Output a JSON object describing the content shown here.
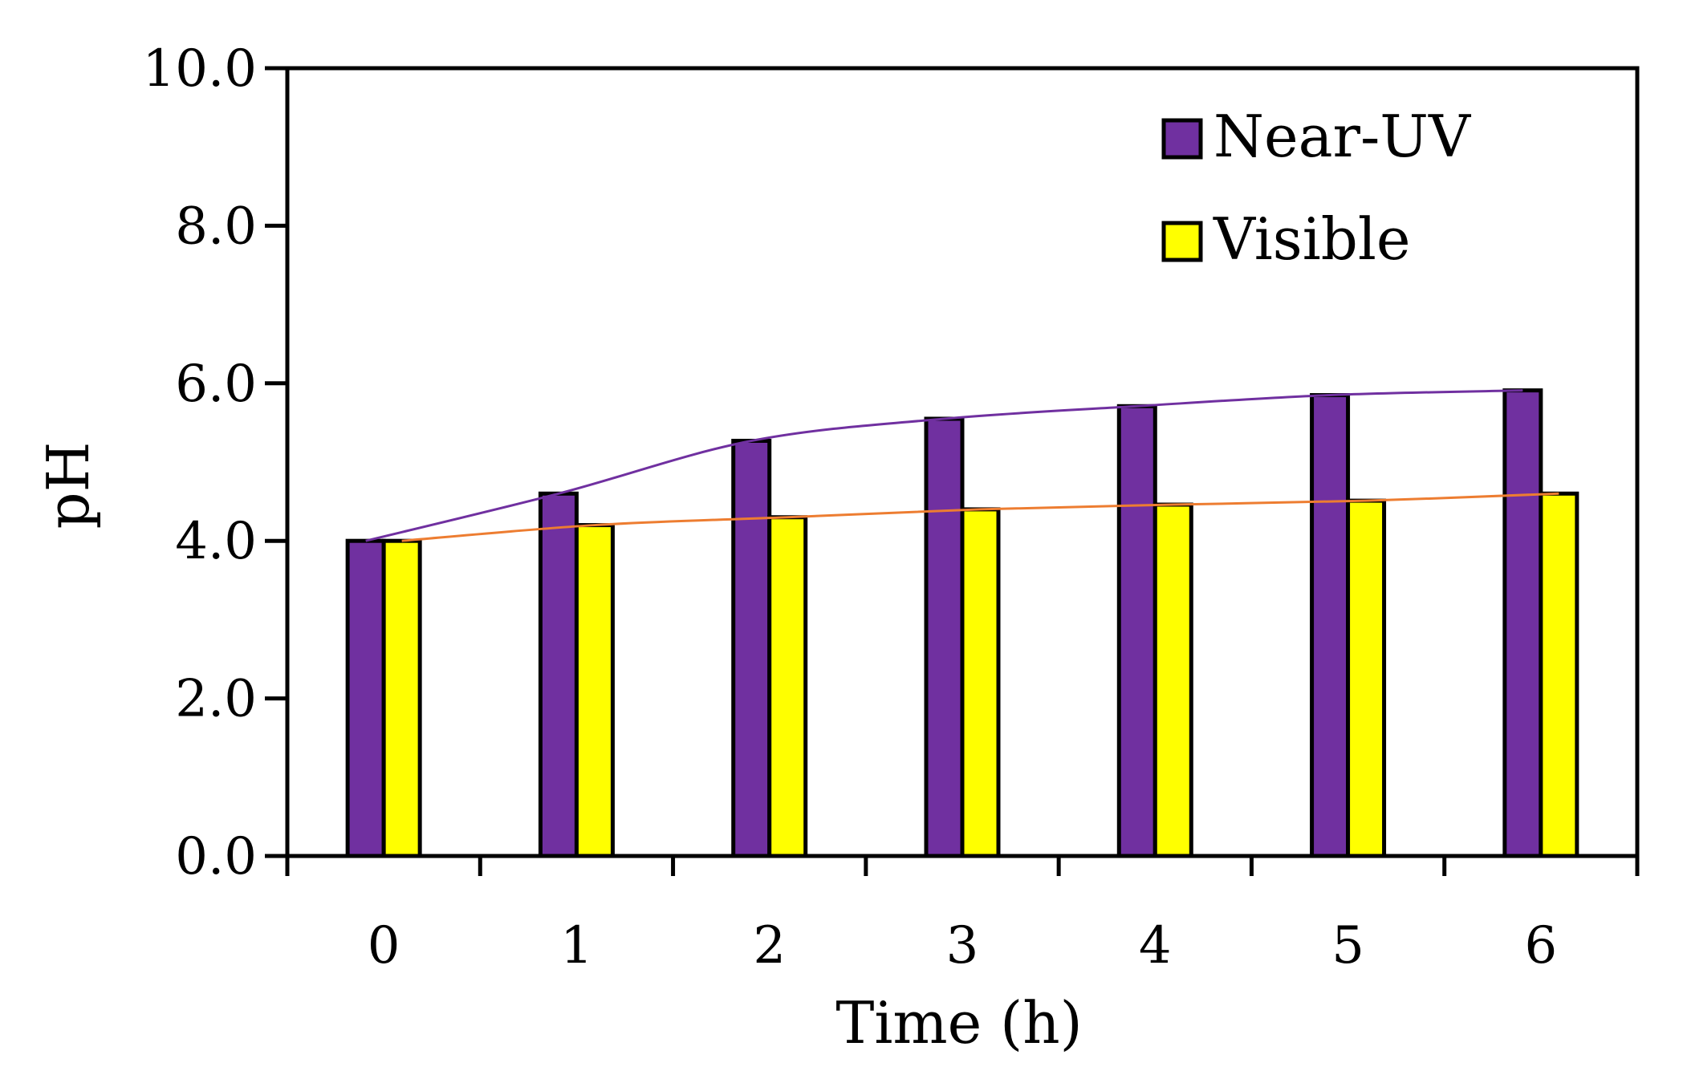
{
  "chart_data": {
    "type": "bar",
    "title": "",
    "xlabel": "Time (h)",
    "ylabel": "pH",
    "ylim": [
      0,
      10
    ],
    "yticks": [
      "0.0",
      "2.0",
      "4.0",
      "6.0",
      "8.0",
      "10.0"
    ],
    "categories": [
      "0",
      "1",
      "2",
      "3",
      "4",
      "5",
      "6"
    ],
    "series": [
      {
        "name": "Near-UV",
        "color": "#7030a0",
        "trend_color": "#7030a0",
        "values": [
          4.0,
          4.6,
          5.27,
          5.55,
          5.71,
          5.85,
          5.91
        ]
      },
      {
        "name": "Visible",
        "color": "#ffff00",
        "trend_color": "#ed7d31",
        "values": [
          4.0,
          4.2,
          4.3,
          4.4,
          4.46,
          4.51,
          4.6
        ]
      }
    ],
    "legend_position": "top-right",
    "grid": false
  }
}
